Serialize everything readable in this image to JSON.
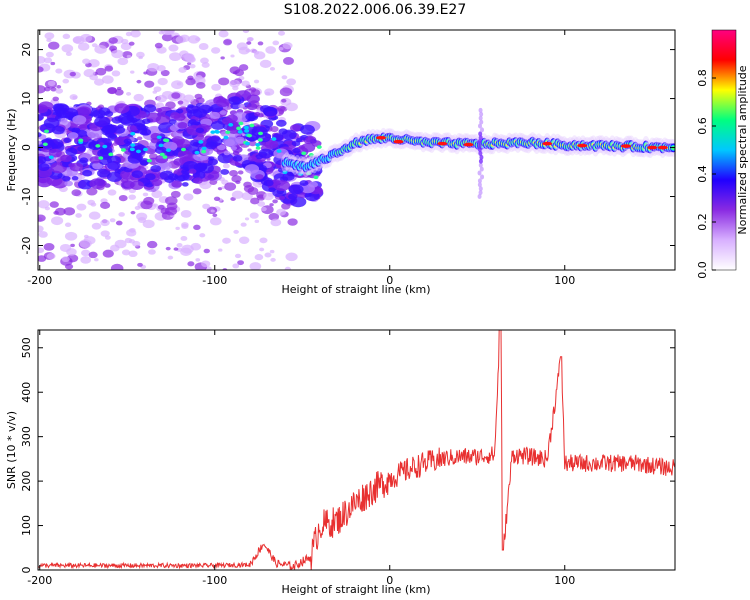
{
  "title": "S108.2022.006.06.39.E27",
  "chart_data": [
    {
      "type": "heatmap",
      "name": "spectrogram",
      "xlabel": "Height of straight line (km)",
      "ylabel": "Frequency (Hz)",
      "xlim": [
        -201,
        163
      ],
      "ylim": [
        -25,
        24
      ],
      "xticks": [
        "-200",
        "-100",
        "0",
        "100"
      ],
      "yticks": [
        "20",
        "10",
        "0",
        "-10",
        "-20"
      ],
      "grid": false,
      "colorbar": {
        "label": "Normalized spectral amplitude",
        "range": [
          0.0,
          1.0
        ],
        "ticks": [
          "0.0",
          "0.2",
          "0.4",
          "0.6",
          "0.8"
        ],
        "colors": [
          "#ffffff",
          "#d8b0ff",
          "#8a2be2",
          "#2000ff",
          "#00c8ff",
          "#00ff80",
          "#ffff00",
          "#ff0000",
          "#ff0080"
        ]
      },
      "trace_points": [
        {
          "x": -200,
          "y": 1
        },
        {
          "x": -160,
          "y": 0
        },
        {
          "x": -120,
          "y": 0
        },
        {
          "x": -100,
          "y": 2
        },
        {
          "x": -88,
          "y": 4
        },
        {
          "x": -80,
          "y": 3
        },
        {
          "x": -70,
          "y": 0
        },
        {
          "x": -60,
          "y": -3
        },
        {
          "x": -48,
          "y": -4
        },
        {
          "x": -35,
          "y": -2
        },
        {
          "x": -25,
          "y": 0
        },
        {
          "x": -15,
          "y": 1.5
        },
        {
          "x": 0,
          "y": 2
        },
        {
          "x": 20,
          "y": 1
        },
        {
          "x": 50,
          "y": 0.7
        },
        {
          "x": 80,
          "y": 1
        },
        {
          "x": 100,
          "y": 0.5
        },
        {
          "x": 130,
          "y": 0.3
        },
        {
          "x": 160,
          "y": 0
        }
      ]
    },
    {
      "type": "line",
      "name": "snr",
      "xlabel": "Height of straight line (km)",
      "ylabel": "SNR (10 * v/v)",
      "xlim": [
        -201,
        163
      ],
      "ylim": [
        0,
        540
      ],
      "xticks": [
        "-200",
        "-100",
        "0",
        "100"
      ],
      "yticks": [
        "500",
        "400",
        "300",
        "200",
        "100",
        "0"
      ],
      "grid": false,
      "color": "#e83030",
      "points": [
        {
          "x": -200,
          "y": 10
        },
        {
          "x": -150,
          "y": 10
        },
        {
          "x": -100,
          "y": 10
        },
        {
          "x": -80,
          "y": 12
        },
        {
          "x": -72,
          "y": 60
        },
        {
          "x": -65,
          "y": 15
        },
        {
          "x": -55,
          "y": 8
        },
        {
          "x": -45,
          "y": 30
        },
        {
          "x": -40,
          "y": 100
        },
        {
          "x": -30,
          "y": 110
        },
        {
          "x": -20,
          "y": 150
        },
        {
          "x": -10,
          "y": 180
        },
        {
          "x": 0,
          "y": 205
        },
        {
          "x": 10,
          "y": 225
        },
        {
          "x": 20,
          "y": 240
        },
        {
          "x": 30,
          "y": 250
        },
        {
          "x": 40,
          "y": 255
        },
        {
          "x": 50,
          "y": 255
        },
        {
          "x": 60,
          "y": 260
        },
        {
          "x": 63,
          "y": 545
        },
        {
          "x": 65,
          "y": 50
        },
        {
          "x": 70,
          "y": 260
        },
        {
          "x": 80,
          "y": 255
        },
        {
          "x": 90,
          "y": 250
        },
        {
          "x": 98,
          "y": 480
        },
        {
          "x": 100,
          "y": 240
        },
        {
          "x": 120,
          "y": 240
        },
        {
          "x": 140,
          "y": 240
        },
        {
          "x": 160,
          "y": 230
        }
      ]
    }
  ]
}
